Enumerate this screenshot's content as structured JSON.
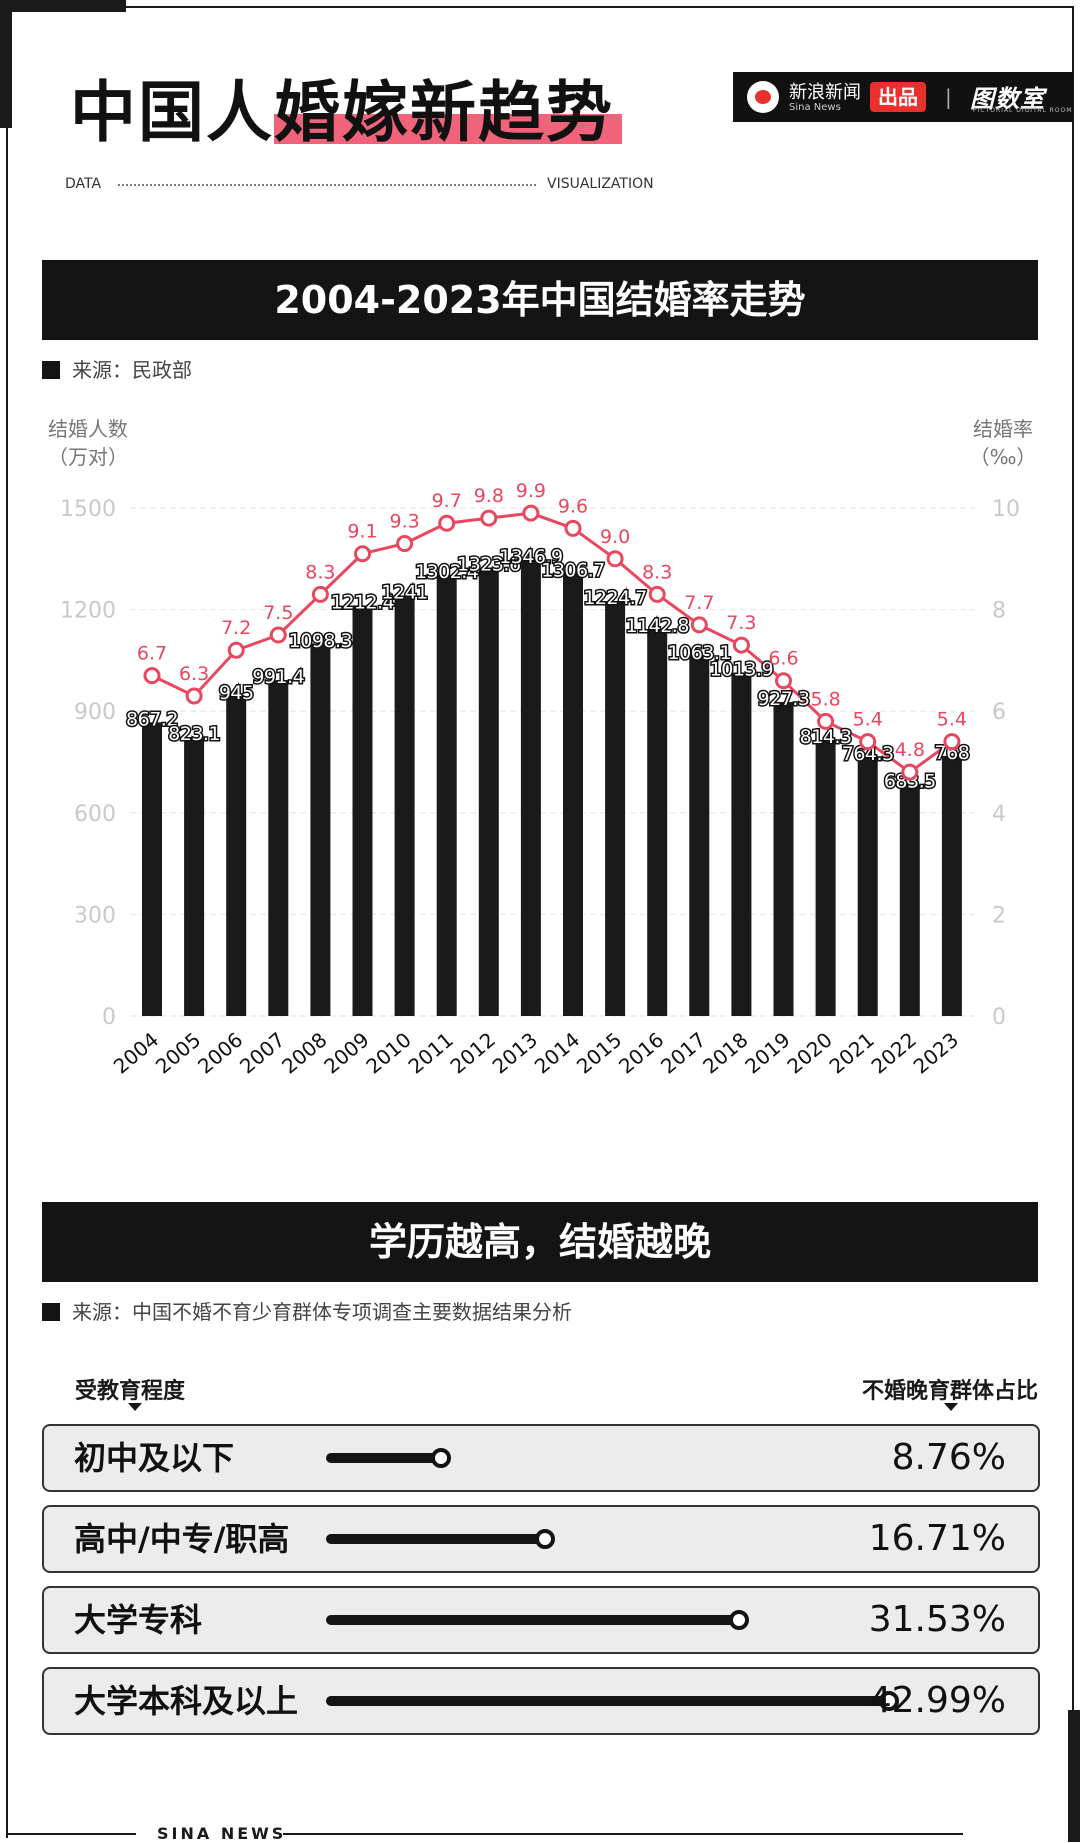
{
  "header": {
    "title_plain": "中国人",
    "title_highlight": "婚嫁新趋势",
    "data_label": "DATA",
    "visualization_label": "VISUALIZATION",
    "highlight_color": "#f0637a"
  },
  "brand": {
    "logo_icon": "sina-eye-icon",
    "name_cn": "新浪新闻",
    "name_en": "Sina News",
    "badge": "出品",
    "separator": "|",
    "partner": "图数室",
    "partner_sub": "PICTORIAL DIGITAL ROOM"
  },
  "section1": {
    "title": "2004-2023年中国结婚率走势",
    "source": "来源：民政部"
  },
  "chart_data": {
    "type": "bar+line",
    "categories": [
      "2004",
      "2005",
      "2006",
      "2007",
      "2008",
      "2009",
      "2010",
      "2011",
      "2012",
      "2013",
      "2014",
      "2015",
      "2016",
      "2017",
      "2018",
      "2019",
      "2020",
      "2021",
      "2022",
      "2023"
    ],
    "series": [
      {
        "type": "bar",
        "axis": "left",
        "color": "#1a1a1a",
        "values": [
          867.2,
          823.1,
          945,
          991.4,
          1098.3,
          1212.4,
          1241,
          1302.4,
          1323.6,
          1346.9,
          1306.7,
          1224.7,
          1142.8,
          1063.1,
          1013.9,
          927.3,
          814.3,
          764.3,
          683.5,
          768
        ],
        "labels": [
          "867.2",
          "823.1",
          "945",
          "991.4",
          "1098.3",
          "1212.4",
          "1241",
          "1302.4",
          "1323.6",
          "1346.9",
          "1306.7",
          "1224.7",
          "1142.8",
          "1063.1",
          "1013.9",
          "927.3",
          "814.3",
          "764.3",
          "683.5",
          "768"
        ]
      },
      {
        "type": "line",
        "axis": "right",
        "color": "#e8475e",
        "values": [
          6.7,
          6.3,
          7.2,
          7.5,
          8.3,
          9.1,
          9.3,
          9.7,
          9.8,
          9.9,
          9.6,
          9.0,
          8.3,
          7.7,
          7.3,
          6.6,
          5.8,
          5.4,
          4.8,
          5.4
        ],
        "labels": [
          "6.7",
          "6.3",
          "7.2",
          "7.5",
          "8.3",
          "9.1",
          "9.3",
          "9.7",
          "9.8",
          "9.9",
          "9.6",
          "9.0",
          "8.3",
          "7.7",
          "7.3",
          "6.6",
          "5.8",
          "5.4",
          "4.8",
          "5.4"
        ]
      }
    ],
    "ylabel_left": [
      "结婚人数",
      "（万对）"
    ],
    "ylabel_right": [
      "结婚率",
      "（‰）"
    ],
    "ylim_left": [
      0,
      1500
    ],
    "ylim_right": [
      0,
      10
    ],
    "yticks_left": [
      "0",
      "300",
      "600",
      "900",
      "1200",
      "1500"
    ],
    "yticks_right": [
      "0",
      "2",
      "4",
      "6",
      "8",
      "10"
    ],
    "grid": true
  },
  "section2": {
    "title": "学历越高，结婚越晚",
    "source": "来源：中国不婚不育少育群体专项调查主要数据结果分析",
    "col_left": "受教育程度",
    "col_right": "不婚晚育群体占比",
    "rows": [
      {
        "label": "初中及以下",
        "value": 8.76,
        "text": "8.76%"
      },
      {
        "label": "高中/中专/职高",
        "value": 16.71,
        "text": "16.71%"
      },
      {
        "label": "大学专科",
        "value": 31.53,
        "text": "31.53%"
      },
      {
        "label": "大学本科及以上",
        "value": 42.99,
        "text": "42.99%"
      }
    ]
  },
  "footer": {
    "text": "SINA NEWS"
  }
}
